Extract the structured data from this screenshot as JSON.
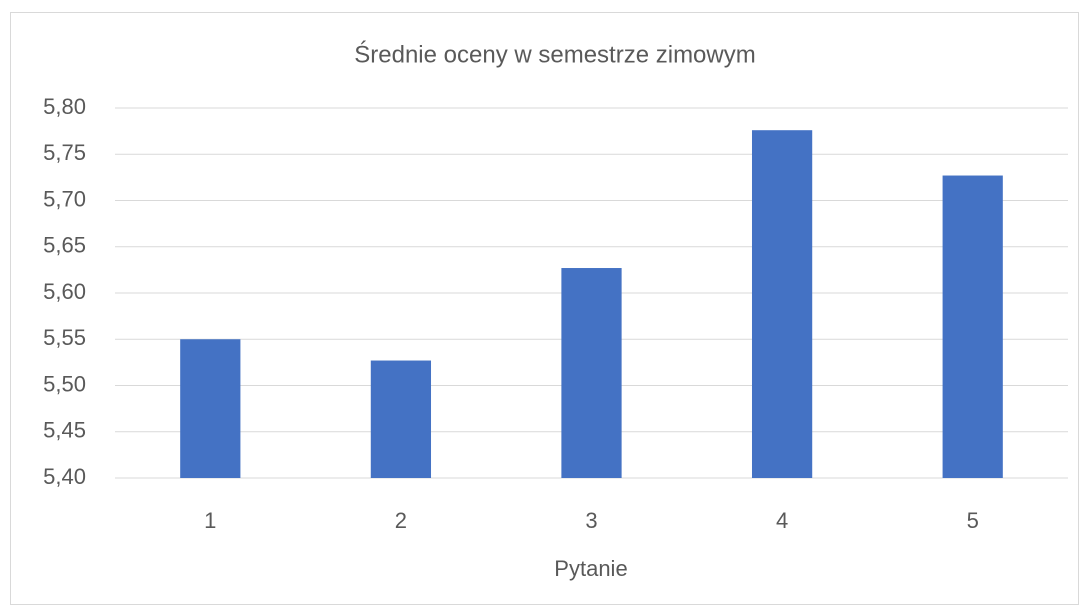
{
  "chart_data": {
    "type": "bar",
    "title": "Średnie oceny  w semestrze zimowym",
    "x_label": "Pytanie",
    "categories": [
      "1",
      "2",
      "3",
      "4",
      "5"
    ],
    "values": [
      5.55,
      5.527,
      5.627,
      5.776,
      5.727
    ],
    "color": "#4472c4",
    "ylim": [
      5.4,
      5.8
    ],
    "yticks": [
      {
        "value": 5.4,
        "label": "5,40"
      },
      {
        "value": 5.45,
        "label": "5,45"
      },
      {
        "value": 5.5,
        "label": "5,50"
      },
      {
        "value": 5.55,
        "label": "5,55"
      },
      {
        "value": 5.6,
        "label": "5,60"
      },
      {
        "value": 5.65,
        "label": "5,65"
      },
      {
        "value": 5.7,
        "label": "5,70"
      },
      {
        "value": 5.75,
        "label": "5,75"
      },
      {
        "value": 5.8,
        "label": "5,80"
      }
    ],
    "grid": true
  }
}
